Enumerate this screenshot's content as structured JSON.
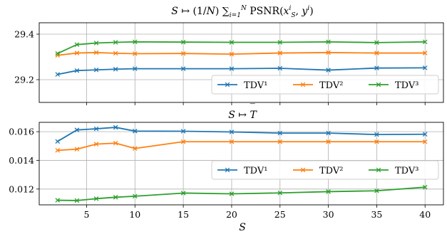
{
  "chart_data": [
    {
      "type": "line",
      "title": "S ↦ (1/N) ∑ᵢ₌₁ᴺ PSNR(xᵢ_S, yᵢ)",
      "xlabel": "",
      "ylabel": "",
      "x": [
        2,
        4,
        6,
        8,
        10,
        15,
        20,
        25,
        30,
        35,
        40
      ],
      "ylim": [
        29.1,
        29.45
      ],
      "yticks": [
        "29.2",
        "29.4"
      ],
      "grid": true,
      "legend": "lower-right",
      "series": [
        {
          "name": "TDV¹",
          "color": "#1f77b4",
          "values": [
            29.223,
            29.24,
            29.243,
            29.246,
            29.248,
            29.248,
            29.248,
            29.25,
            29.242,
            29.251,
            29.252
          ]
        },
        {
          "name": "TDV²",
          "color": "#ff7f0e",
          "values": [
            29.307,
            29.317,
            29.319,
            29.316,
            29.314,
            29.315,
            29.312,
            29.317,
            29.319,
            29.317,
            29.317
          ]
        },
        {
          "name": "TDV³",
          "color": "#2ca02c",
          "values": [
            29.315,
            29.354,
            29.361,
            29.364,
            29.366,
            29.365,
            29.364,
            29.364,
            29.366,
            29.363,
            29.366
          ]
        }
      ]
    },
    {
      "type": "line",
      "title": "S ↦ T̄",
      "xlabel": "S",
      "ylabel": "",
      "x": [
        2,
        4,
        6,
        8,
        10,
        15,
        20,
        25,
        30,
        35,
        40
      ],
      "xticks": [
        "5",
        "10",
        "15",
        "20",
        "25",
        "30",
        "35",
        "40"
      ],
      "ylim": [
        0.0109,
        0.01665
      ],
      "yticks": [
        "0.012",
        "0.014",
        "0.016"
      ],
      "grid": true,
      "legend": "center-right",
      "series": [
        {
          "name": "TDV¹",
          "color": "#1f77b4",
          "values": [
            0.01532,
            0.01612,
            0.0162,
            0.0163,
            0.01604,
            0.01603,
            0.01598,
            0.0159,
            0.0159,
            0.0158,
            0.01582
          ]
        },
        {
          "name": "TDV²",
          "color": "#ff7f0e",
          "values": [
            0.0147,
            0.01478,
            0.01513,
            0.0152,
            0.01483,
            0.0153,
            0.0153,
            0.0153,
            0.0153,
            0.0153,
            0.0153
          ]
        },
        {
          "name": "TDV³",
          "color": "#2ca02c",
          "values": [
            0.01122,
            0.0112,
            0.01133,
            0.01143,
            0.0115,
            0.01172,
            0.01167,
            0.01173,
            0.01182,
            0.01188,
            0.01213
          ]
        }
      ]
    }
  ]
}
